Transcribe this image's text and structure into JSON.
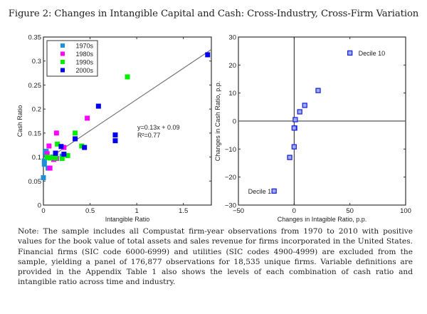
{
  "figure": {
    "title": "Figure 2: Changes in Intangible Capital and Cash: Cross-Industry, Cross-Firm Variation",
    "note": "Note: The sample includes all Compustat firm-year observations from 1970 to 2010 with positive values for the book value of total assets and sales revenue for firms incorporated in the United States. Financial firms (SIC code 6000-6999) and utilities (SIC codes 4900-4999) are excluded from the sample, yielding a panel of 176,877 observations for 18,535 unique firms. Variable definitions are provided in the Appendix Table 1 also shows the levels of each combination of cash ratio and intangible ratio across time and industry."
  },
  "chart_data": [
    {
      "type": "scatter",
      "title": "",
      "xlabel": "Intangible Ratio",
      "ylabel": "Cash Ratio",
      "xlim": [
        0,
        1.8
      ],
      "ylim": [
        0,
        0.35
      ],
      "xticks": [
        0,
        0.5,
        1,
        1.5
      ],
      "xtick_labels": [
        "0",
        "0.5",
        "1",
        "1.5"
      ],
      "yticks": [
        0,
        0.05,
        0.1,
        0.15,
        0.2,
        0.25,
        0.3,
        0.35
      ],
      "ytick_labels": [
        "0",
        "0.05",
        "0.1",
        "0.15",
        "0.2",
        "0.25",
        "0.3",
        "0.35"
      ],
      "grid": false,
      "legend_position": "top-left",
      "series": [
        {
          "name": "1970s",
          "color": "#1e90d8",
          "x": [
            0.0,
            0.01,
            0.02,
            0.03,
            0.05,
            0.1,
            0.2,
            0.01,
            0.03
          ],
          "y": [
            0.057,
            0.085,
            0.11,
            0.104,
            0.077,
            0.1,
            0.102,
            0.092,
            0.112
          ]
        },
        {
          "name": "1980s",
          "color": "#ff00ff",
          "x": [
            0.07,
            0.11,
            0.04,
            0.06,
            0.22,
            0.14,
            0.47,
            0.14
          ],
          "y": [
            0.077,
            0.095,
            0.107,
            0.123,
            0.12,
            0.15,
            0.181,
            0.097
          ]
        },
        {
          "name": "1990s",
          "color": "#00ee00",
          "x": [
            0.04,
            0.07,
            0.12,
            0.15,
            0.26,
            0.2,
            0.34,
            0.41,
            0.9,
            0.13
          ],
          "y": [
            0.1,
            0.098,
            0.1,
            0.127,
            0.103,
            0.097,
            0.15,
            0.123,
            0.267,
            0.098
          ]
        },
        {
          "name": "2000s",
          "color": "#0000ee",
          "x": [
            0.13,
            0.19,
            0.22,
            0.34,
            0.44,
            0.59,
            0.77,
            0.77,
            1.76,
            0.13
          ],
          "y": [
            0.108,
            0.122,
            0.106,
            0.138,
            0.12,
            0.206,
            0.146,
            0.134,
            0.313,
            0.108
          ]
        }
      ],
      "fit_line": {
        "slope": 0.13,
        "intercept": 0.09,
        "x_range": [
          0,
          1.8
        ],
        "color": "#777777"
      },
      "annotations": [
        "y=0.13x + 0.09",
        "R²=0.77"
      ]
    },
    {
      "type": "scatter",
      "title": "",
      "xlabel": "Changes in Intagible Ratio, p.p.",
      "ylabel": "Changes in Cash Ratio, p.p.",
      "xlim": [
        -50,
        100
      ],
      "ylim": [
        -30,
        30
      ],
      "xticks": [
        -50,
        0,
        50,
        100
      ],
      "xtick_labels": [
        "−50",
        "0",
        "50",
        "100"
      ],
      "yticks": [
        -30,
        -20,
        -10,
        0,
        10,
        20,
        30
      ],
      "ytick_labels": [
        "−30",
        "−20",
        "−10",
        "0",
        "10",
        "20",
        "30"
      ],
      "grid": false,
      "reference_lines": {
        "x": 0,
        "y": 0
      },
      "series": [
        {
          "name": "Deciles",
          "color": "#2222dd",
          "fill": "#9ab0ff",
          "x": [
            -18,
            -4,
            0,
            0.5,
            0,
            1,
            5,
            9.5,
            21.5,
            50
          ],
          "y": [
            -25,
            -13,
            -9.2,
            -2.5,
            -2.5,
            0.5,
            3.3,
            5.6,
            10.9,
            24.3
          ]
        }
      ],
      "annotations": [
        "Decile 1",
        "Decile 10"
      ]
    }
  ]
}
